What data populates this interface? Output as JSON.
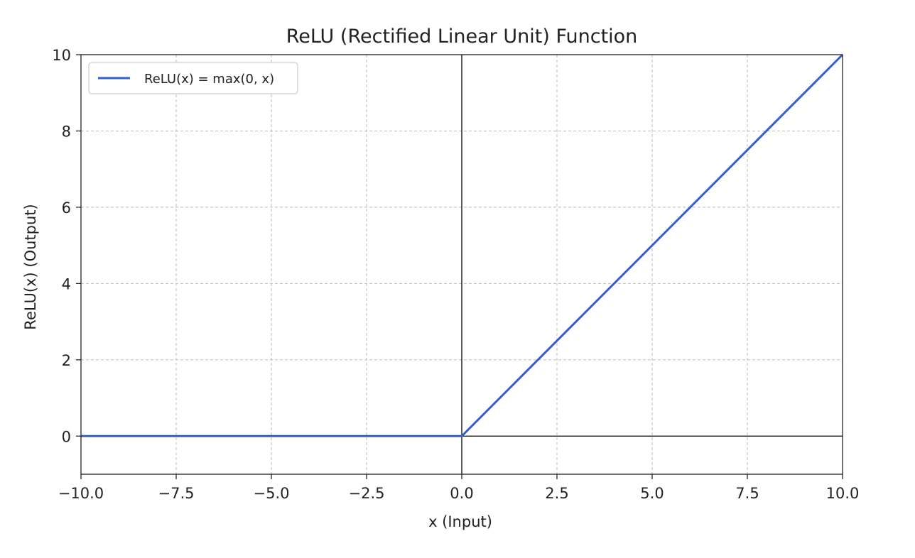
{
  "chart_data": {
    "type": "line",
    "title": "ReLU (Rectified Linear Unit) Function",
    "xlabel": "x (Input)",
    "ylabel": "ReLU(x) (Output)",
    "xlim": [
      -10,
      10
    ],
    "ylim": [
      -1,
      10
    ],
    "x_ticks": [
      -10,
      -7.5,
      -5,
      -2.5,
      0,
      2.5,
      5,
      7.5,
      10
    ],
    "x_tick_labels": [
      "−10.0",
      "−7.5",
      "−5.0",
      "−2.5",
      "0.0",
      "2.5",
      "5.0",
      "7.5",
      "10.0"
    ],
    "y_ticks": [
      0,
      2,
      4,
      6,
      8,
      10
    ],
    "y_tick_labels": [
      "0",
      "2",
      "4",
      "6",
      "8",
      "10"
    ],
    "grid": true,
    "zero_lines": true,
    "legend_position": "top-left",
    "series": [
      {
        "name": "ReLU(x) = max(0, x)",
        "color": "#3060c8",
        "points": [
          [
            -10,
            0
          ],
          [
            0,
            0
          ],
          [
            10,
            10
          ]
        ]
      }
    ]
  }
}
